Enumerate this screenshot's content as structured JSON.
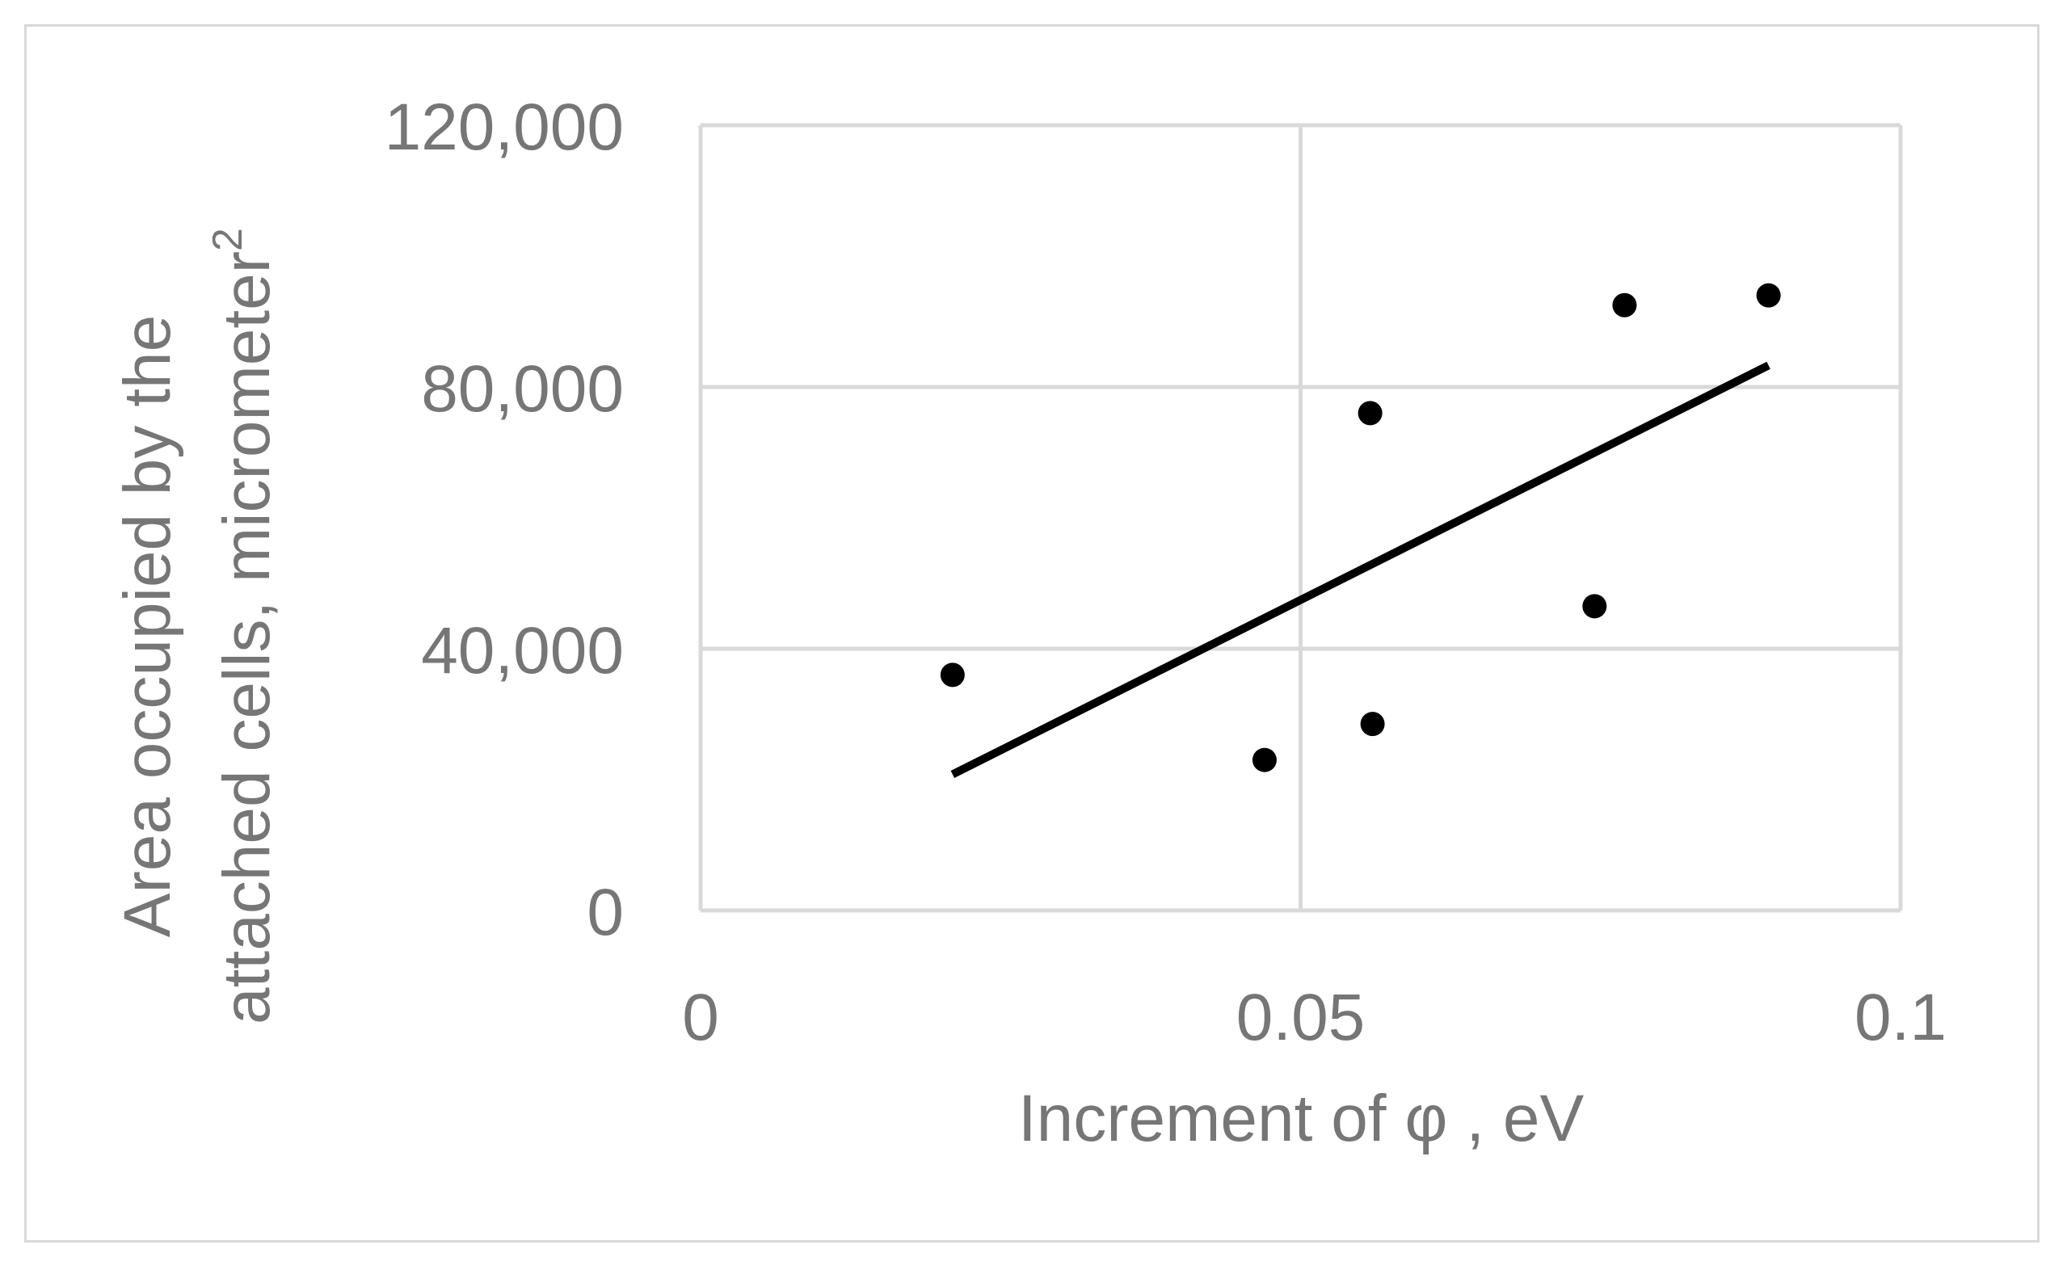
{
  "chart_data": {
    "type": "scatter",
    "title": "",
    "xlabel": "Increment of φ , eV",
    "ylabel_line1": "Area occupied by the",
    "ylabel_line2": "attached cells, micrometer",
    "ylabel_superscript": "2",
    "xlim": [
      0,
      0.1
    ],
    "ylim": [
      0,
      120000
    ],
    "x_ticks": [
      0,
      0.05,
      0.1
    ],
    "x_tick_labels": [
      "0",
      "0.05",
      "0.1"
    ],
    "y_ticks": [
      0,
      40000,
      80000,
      120000
    ],
    "y_tick_labels": [
      "0",
      "40,000",
      "80,000",
      "120,000"
    ],
    "grid": true,
    "series": [
      {
        "points": [
          {
            "x": 0.021,
            "y": 36000
          },
          {
            "x": 0.047,
            "y": 23000
          },
          {
            "x": 0.0558,
            "y": 76000
          },
          {
            "x": 0.056,
            "y": 28500
          },
          {
            "x": 0.0745,
            "y": 46500
          },
          {
            "x": 0.077,
            "y": 92500
          },
          {
            "x": 0.089,
            "y": 94000
          }
        ],
        "color": "#000000"
      }
    ],
    "trendline": {
      "type": "linear",
      "x": [
        0.021,
        0.089
      ],
      "y": [
        20800,
        83300
      ],
      "color": "#000000"
    }
  }
}
